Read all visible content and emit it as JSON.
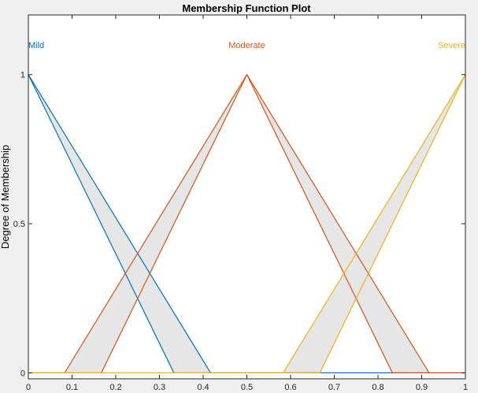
{
  "chart_data": {
    "type": "line",
    "title": "Membership Function Plot",
    "xlabel": "",
    "ylabel": "Degree of Membership",
    "xlim": [
      0,
      1
    ],
    "ylim": [
      -0.02,
      1.2
    ],
    "x_ticks": [
      0,
      0.1,
      0.2,
      0.3,
      0.4,
      0.5,
      0.6,
      0.7,
      0.8,
      0.9,
      1
    ],
    "x_tick_labels": [
      "0",
      "0.1",
      "0.2",
      "0.3",
      "0.4",
      "0.5",
      "0.6",
      "0.7",
      "0.8",
      "0.9",
      "1"
    ],
    "y_ticks": [
      0,
      0.5,
      1
    ],
    "y_tick_labels": [
      "0",
      "0.5",
      "1"
    ],
    "grid": false,
    "series": [
      {
        "name": "Mild",
        "color": "#0072bd",
        "upper": [
          [
            0,
            1
          ],
          [
            0.417,
            0
          ],
          [
            1,
            0
          ]
        ],
        "lower": [
          [
            0,
            1
          ],
          [
            0.333,
            0
          ],
          [
            1,
            0
          ]
        ],
        "label_x": 0,
        "label_align": "start"
      },
      {
        "name": "Moderate",
        "color": "#d95319",
        "upper": [
          [
            0,
            0
          ],
          [
            0.083,
            0
          ],
          [
            0.5,
            1
          ],
          [
            0.917,
            0
          ],
          [
            1,
            0
          ]
        ],
        "lower": [
          [
            0,
            0
          ],
          [
            0.167,
            0
          ],
          [
            0.5,
            1
          ],
          [
            0.833,
            0
          ],
          [
            1,
            0
          ]
        ],
        "label_x": 0.5,
        "label_align": "middle"
      },
      {
        "name": "Severe",
        "color": "#edb120",
        "upper": [
          [
            0,
            0
          ],
          [
            0.583,
            0
          ],
          [
            1,
            1
          ]
        ],
        "lower": [
          [
            0,
            0
          ],
          [
            0.667,
            0
          ],
          [
            1,
            1
          ]
        ],
        "label_x": 1,
        "label_align": "end"
      }
    ],
    "footprint_fill": "#e6e6e6",
    "label_y": 1.1
  }
}
